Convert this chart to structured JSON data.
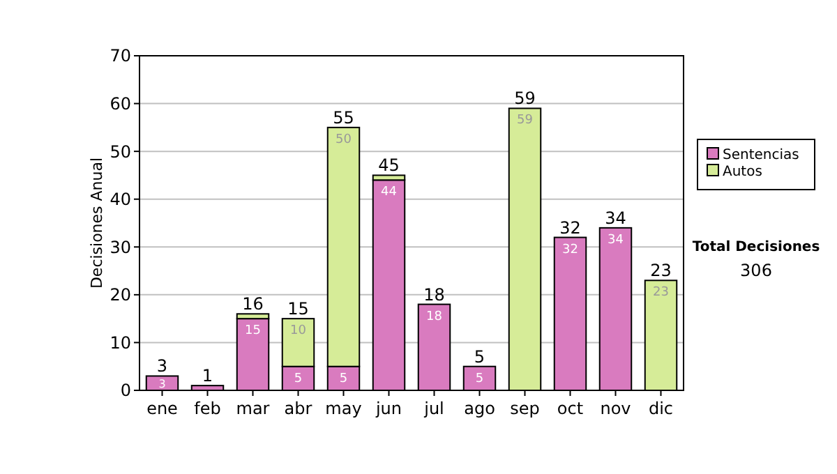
{
  "chart_data": {
    "type": "bar",
    "stacked": true,
    "ylabel": "Decisiones Anual",
    "categories": [
      "ene",
      "feb",
      "mar",
      "abr",
      "may",
      "jun",
      "jul",
      "ago",
      "sep",
      "oct",
      "nov",
      "dic"
    ],
    "series": [
      {
        "name": "Sentencias",
        "color": "#d97bbf",
        "values": [
          3,
          1,
          15,
          5,
          5,
          44,
          18,
          5,
          null,
          32,
          34,
          null
        ],
        "value_labels": [
          "3",
          null,
          "15",
          "5",
          "5",
          "44",
          "18",
          "5",
          null,
          "32",
          "34",
          null
        ]
      },
      {
        "name": "Autos",
        "color": "#d6ec98",
        "values": [
          null,
          null,
          1,
          10,
          50,
          1,
          null,
          null,
          59,
          null,
          null,
          23
        ],
        "value_labels": [
          null,
          null,
          null,
          "10",
          "50",
          null,
          null,
          null,
          "59",
          null,
          null,
          "23"
        ]
      }
    ],
    "totals": [
      "3",
      "1",
      "16",
      "15",
      "55",
      "45",
      "18",
      "5",
      "59",
      "32",
      "34",
      "23"
    ],
    "ylim": [
      0,
      70
    ],
    "yticks": [
      0,
      10,
      20,
      30,
      40,
      50,
      60,
      70
    ],
    "grid": "y",
    "legend": "right",
    "annotations": [
      "Total Decisiones",
      "306"
    ]
  }
}
